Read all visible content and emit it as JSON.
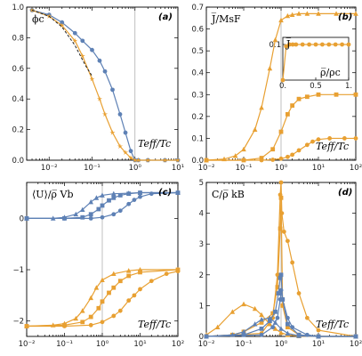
{
  "colors": {
    "orange": "#E8A032",
    "blue": "#5E81B5",
    "black": "#222222"
  },
  "chart_data": [
    {
      "panel": "a",
      "label": "(a)",
      "type": "line",
      "xscale": "log",
      "ylabel": "ϕc",
      "xlabel": "Teff/Tc",
      "xlim": [
        0.003,
        10
      ],
      "ylim": [
        0,
        1.0
      ],
      "xticks": [
        {
          "v": 0.01,
          "t": "10⁻²"
        },
        {
          "v": 0.1,
          "t": "10⁻¹"
        },
        {
          "v": 1,
          "t": "10⁰"
        },
        {
          "v": 10,
          "t": "10¹"
        }
      ],
      "yticks": [
        {
          "v": 0,
          "t": "0.0"
        },
        {
          "v": 0.2,
          "t": "0.2"
        },
        {
          "v": 0.4,
          "t": "0.4"
        },
        {
          "v": 0.6,
          "t": "0.6"
        },
        {
          "v": 0.8,
          "t": "0.8"
        },
        {
          "v": 1.0,
          "t": "1.0"
        }
      ],
      "vline": 1,
      "series": [
        {
          "color": "blue",
          "marker": "circle",
          "x": [
            0.004,
            0.01,
            0.02,
            0.04,
            0.06,
            0.1,
            0.15,
            0.2,
            0.3,
            0.45,
            0.6,
            0.8,
            1.0,
            1.2,
            2,
            5,
            10
          ],
          "y": [
            0.98,
            0.95,
            0.9,
            0.83,
            0.78,
            0.72,
            0.65,
            0.58,
            0.46,
            0.3,
            0.18,
            0.06,
            0.0,
            0.0,
            0.0,
            0.0,
            0.0
          ],
          "points": true
        },
        {
          "color": "orange",
          "marker": "star",
          "x": [
            0.004,
            0.01,
            0.02,
            0.04,
            0.06,
            0.1,
            0.15,
            0.2,
            0.3,
            0.45,
            0.6,
            0.8,
            1.0,
            1.2,
            2,
            5,
            10
          ],
          "y": [
            0.98,
            0.94,
            0.88,
            0.78,
            0.68,
            0.53,
            0.4,
            0.3,
            0.18,
            0.09,
            0.05,
            0.015,
            0.0,
            0.0,
            0.0,
            0.0,
            0.0
          ],
          "points": true
        },
        {
          "color": "black",
          "style": "dashed",
          "x": [
            0.004,
            0.01,
            0.02,
            0.04,
            0.07,
            0.1
          ],
          "y": [
            0.98,
            0.94,
            0.87,
            0.75,
            0.62,
            0.55
          ],
          "points": false
        }
      ]
    },
    {
      "panel": "b",
      "label": "(b)",
      "type": "line",
      "xscale": "log",
      "ylabel": "J̅/MsF",
      "xlabel": "Teff/Tc",
      "xlim": [
        0.01,
        100
      ],
      "ylim": [
        0,
        0.7
      ],
      "xticks": [
        {
          "v": 0.01,
          "t": "10⁻²"
        },
        {
          "v": 0.1,
          "t": "10⁻¹"
        },
        {
          "v": 1,
          "t": "10⁰"
        },
        {
          "v": 10,
          "t": "10¹"
        },
        {
          "v": 100,
          "t": "10²"
        }
      ],
      "yticks": [
        {
          "v": 0,
          "t": "0.0"
        },
        {
          "v": 0.1,
          "t": "0.1"
        },
        {
          "v": 0.2,
          "t": "0.2"
        },
        {
          "v": 0.3,
          "t": "0.3"
        },
        {
          "v": 0.4,
          "t": "0.4"
        },
        {
          "v": 0.5,
          "t": "0.5"
        },
        {
          "v": 0.6,
          "t": "0.6"
        },
        {
          "v": 0.7,
          "t": "0.7"
        }
      ],
      "vline": 1,
      "series": [
        {
          "color": "orange",
          "marker": "triangle",
          "x": [
            0.01,
            0.03,
            0.06,
            0.1,
            0.2,
            0.3,
            0.5,
            0.7,
            1,
            1.5,
            2,
            3,
            5,
            10,
            30,
            100
          ],
          "y": [
            0.0,
            0.005,
            0.02,
            0.05,
            0.14,
            0.24,
            0.42,
            0.55,
            0.64,
            0.66,
            0.665,
            0.67,
            0.67,
            0.67,
            0.67,
            0.67
          ],
          "points": true
        },
        {
          "color": "orange",
          "marker": "square",
          "x": [
            0.01,
            0.1,
            0.3,
            0.6,
            1,
            1.5,
            2,
            3,
            5,
            10,
            30,
            100
          ],
          "y": [
            0.0,
            0.0,
            0.01,
            0.05,
            0.13,
            0.21,
            0.25,
            0.28,
            0.29,
            0.3,
            0.3,
            0.3
          ],
          "points": true
        },
        {
          "color": "orange",
          "marker": "circle",
          "x": [
            0.01,
            0.3,
            0.6,
            1,
            1.5,
            2,
            3,
            5,
            7,
            10,
            20,
            50,
            100
          ],
          "y": [
            0.0,
            0.0,
            0.002,
            0.007,
            0.015,
            0.025,
            0.045,
            0.07,
            0.085,
            0.095,
            0.1,
            0.1,
            0.1
          ],
          "points": true
        }
      ],
      "inset": {
        "ylabel": "J̅",
        "xlabel": "ρ̅/ρc",
        "xlim": [
          0,
          1
        ],
        "ylim": [
          0,
          0.12
        ],
        "xticks": [
          {
            "v": 0,
            "t": "0."
          },
          {
            "v": 0.5,
            "t": "0.5"
          },
          {
            "v": 1,
            "t": "1."
          }
        ],
        "yticks": [
          {
            "v": 0.1,
            "t": "0.1"
          }
        ],
        "x": [
          0.0,
          0.05,
          0.1,
          0.15,
          0.2,
          0.3,
          0.4,
          0.5,
          0.6,
          0.7,
          0.8,
          0.9,
          1.0
        ],
        "y": [
          0.0,
          0.095,
          0.1,
          0.1,
          0.1,
          0.1,
          0.1,
          0.1,
          0.1,
          0.1,
          0.1,
          0.1,
          0.1
        ]
      }
    },
    {
      "panel": "c",
      "label": "(c)",
      "type": "line",
      "xscale": "log",
      "ylabel": "⟨U⟩/ρ̅ Vb",
      "xlabel": "Teff/Tc",
      "xlim": [
        0.01,
        100
      ],
      "ylim": [
        -2.3,
        0.7
      ],
      "xticks": [
        {
          "v": 0.01,
          "t": "10⁻²"
        },
        {
          "v": 0.1,
          "t": "10⁻¹"
        },
        {
          "v": 1,
          "t": "10⁰"
        },
        {
          "v": 10,
          "t": "10¹"
        },
        {
          "v": 100,
          "t": "10²"
        }
      ],
      "yticks": [
        {
          "v": 0,
          "t": "0"
        },
        {
          "v": -1,
          "t": "−1"
        },
        {
          "v": -2,
          "t": "−2"
        }
      ],
      "vline": 1,
      "series": [
        {
          "color": "blue",
          "marker": "triangle",
          "x": [
            0.01,
            0.05,
            0.1,
            0.2,
            0.3,
            0.5,
            0.7,
            1,
            2,
            5,
            10,
            100
          ],
          "y": [
            0.0,
            0.0,
            0.02,
            0.08,
            0.17,
            0.32,
            0.4,
            0.45,
            0.48,
            0.49,
            0.5,
            0.5
          ],
          "points": true
        },
        {
          "color": "blue",
          "marker": "square",
          "x": [
            0.01,
            0.1,
            0.3,
            0.5,
            0.8,
            1,
            1.5,
            2,
            3,
            5,
            10,
            100
          ],
          "y": [
            0.0,
            0.0,
            0.02,
            0.08,
            0.18,
            0.25,
            0.35,
            0.4,
            0.45,
            0.48,
            0.5,
            0.5
          ],
          "points": true
        },
        {
          "color": "blue",
          "marker": "circle",
          "x": [
            0.01,
            0.1,
            0.5,
            1,
            2,
            3,
            5,
            7,
            10,
            20,
            100
          ],
          "y": [
            0.0,
            0.0,
            0.0,
            0.02,
            0.08,
            0.15,
            0.28,
            0.36,
            0.42,
            0.48,
            0.5
          ],
          "points": true
        },
        {
          "color": "orange",
          "marker": "triangle",
          "x": [
            0.01,
            0.05,
            0.1,
            0.2,
            0.3,
            0.5,
            0.7,
            1,
            2,
            5,
            10,
            100
          ],
          "y": [
            -2.1,
            -2.08,
            -2.05,
            -1.95,
            -1.8,
            -1.55,
            -1.35,
            -1.2,
            -1.08,
            -1.02,
            -1.0,
            -1.0
          ],
          "points": true
        },
        {
          "color": "orange",
          "marker": "square",
          "x": [
            0.01,
            0.1,
            0.3,
            0.5,
            0.8,
            1,
            1.5,
            2,
            3,
            5,
            10,
            100
          ],
          "y": [
            -2.1,
            -2.08,
            -2.02,
            -1.92,
            -1.75,
            -1.62,
            -1.45,
            -1.35,
            -1.22,
            -1.12,
            -1.05,
            -1.0
          ],
          "points": true
        },
        {
          "color": "orange",
          "marker": "circle",
          "x": [
            0.01,
            0.1,
            0.5,
            1,
            2,
            3,
            5,
            7,
            10,
            20,
            50,
            100
          ],
          "y": [
            -2.1,
            -2.1,
            -2.08,
            -2.02,
            -1.9,
            -1.8,
            -1.6,
            -1.5,
            -1.38,
            -1.22,
            -1.08,
            -1.03
          ],
          "points": true
        }
      ]
    },
    {
      "panel": "d",
      "label": "(d)",
      "type": "line",
      "xscale": "log",
      "ylabel": "C/ρ̅ kB",
      "xlabel": "Teff/Tc",
      "xlim": [
        0.01,
        100
      ],
      "ylim": [
        0,
        5
      ],
      "xticks": [
        {
          "v": 0.01,
          "t": "10⁻²"
        },
        {
          "v": 0.1,
          "t": "10⁻¹"
        },
        {
          "v": 1,
          "t": "10⁰"
        },
        {
          "v": 10,
          "t": "10¹"
        },
        {
          "v": 100,
          "t": "10²"
        }
      ],
      "yticks": [
        {
          "v": 0,
          "t": "0"
        },
        {
          "v": 1,
          "t": "1"
        },
        {
          "v": 2,
          "t": "2"
        },
        {
          "v": 3,
          "t": "3"
        },
        {
          "v": 4,
          "t": "4"
        },
        {
          "v": 5,
          "t": "5"
        }
      ],
      "vline": 1,
      "series": [
        {
          "color": "orange",
          "marker": "circle",
          "x": [
            0.01,
            0.3,
            0.6,
            0.8,
            0.95,
            1.0,
            1.05,
            1.2,
            1.5,
            2,
            3,
            5,
            10,
            100
          ],
          "y": [
            0.0,
            0.1,
            0.6,
            2.0,
            4.6,
            5.0,
            4.0,
            3.4,
            3.1,
            2.4,
            1.4,
            0.6,
            0.2,
            0.0
          ],
          "points": true
        },
        {
          "color": "orange",
          "marker": "triangle",
          "x": [
            0.01,
            0.02,
            0.05,
            0.1,
            0.2,
            0.3,
            0.5,
            0.7,
            1.0,
            1.5,
            3,
            10,
            100
          ],
          "y": [
            0.05,
            0.3,
            0.8,
            1.05,
            0.9,
            0.7,
            0.4,
            0.25,
            0.12,
            0.05,
            0.01,
            0.0,
            0.0
          ],
          "points": true
        },
        {
          "color": "orange",
          "marker": "square",
          "x": [
            0.01,
            0.05,
            0.1,
            0.3,
            0.6,
            0.8,
            0.95,
            1.0,
            1.1,
            1.5,
            3,
            10,
            100
          ],
          "y": [
            0.0,
            0.05,
            0.15,
            0.45,
            0.75,
            1.6,
            3.5,
            4.5,
            1.0,
            0.3,
            0.05,
            0.0,
            0.0
          ],
          "points": true
        },
        {
          "color": "blue",
          "marker": "triangle",
          "x": [
            0.01,
            0.05,
            0.1,
            0.2,
            0.3,
            0.5,
            0.7,
            1.0,
            1.5,
            3,
            10,
            100
          ],
          "y": [
            0.0,
            0.05,
            0.15,
            0.4,
            0.55,
            0.6,
            0.45,
            0.25,
            0.1,
            0.02,
            0.0,
            0.0
          ],
          "points": true
        },
        {
          "color": "blue",
          "marker": "square",
          "x": [
            0.01,
            0.1,
            0.3,
            0.5,
            0.7,
            0.85,
            0.95,
            1.0,
            1.1,
            1.5,
            3,
            10,
            100
          ],
          "y": [
            0.0,
            0.05,
            0.25,
            0.5,
            0.8,
            1.4,
            1.9,
            2.0,
            1.2,
            0.4,
            0.05,
            0.0,
            0.0
          ],
          "points": true
        },
        {
          "color": "blue",
          "marker": "circle",
          "x": [
            0.01,
            0.3,
            0.6,
            0.8,
            0.95,
            1.0,
            1.1,
            1.5,
            2,
            5,
            10,
            100
          ],
          "y": [
            0.0,
            0.05,
            0.3,
            0.6,
            1.2,
            1.5,
            1.2,
            0.6,
            0.3,
            0.05,
            0.0,
            0.0
          ],
          "points": true
        }
      ]
    }
  ]
}
